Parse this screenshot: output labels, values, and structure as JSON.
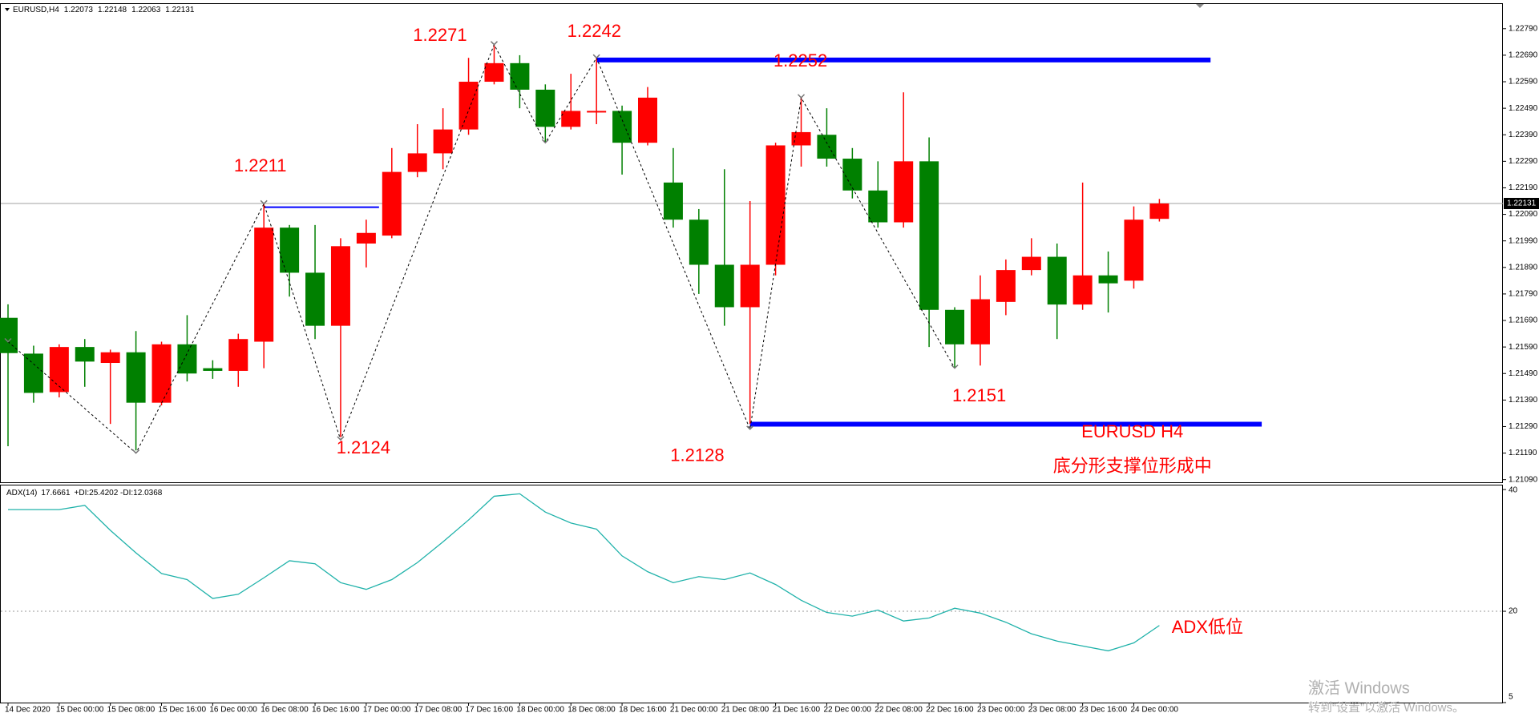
{
  "chart_data": [
    {
      "type": "candlestick",
      "title": "EURUSD,H4",
      "categories": [
        "14 Dec 2020",
        null,
        "15 Dec 00:00",
        null,
        "15 Dec 08:00",
        null,
        "15 Dec 16:00",
        null,
        "16 Dec 00:00",
        null,
        "16 Dec 08:00",
        null,
        "16 Dec 16:00",
        null,
        "17 Dec 00:00",
        null,
        "17 Dec 08:00",
        null,
        "17 Dec 16:00",
        null,
        "18 Dec 00:00",
        null,
        "18 Dec 08:00",
        null,
        "18 Dec 16:00",
        null,
        "21 Dec 00:00",
        null,
        "21 Dec 08:00",
        null,
        "21 Dec 16:00",
        null,
        "22 Dec 00:00",
        null,
        "22 Dec 08:00",
        null,
        "22 Dec 16:00",
        null,
        "23 Dec 00:00",
        null,
        "23 Dec 08:00",
        null,
        "23 Dec 16:00",
        null,
        "24 Dec 00:00",
        null
      ],
      "open": [
        1.217,
        1.21565,
        1.2142,
        1.2159,
        1.2153,
        1.2157,
        1.2138,
        1.216,
        1.2151,
        1.215,
        1.2161,
        1.2204,
        1.2187,
        1.2167,
        1.2198,
        1.2201,
        1.2225,
        1.2232,
        1.2241,
        1.2259,
        1.2266,
        1.2256,
        1.2242,
        1.2248,
        1.2248,
        1.2236,
        1.2221,
        1.2207,
        1.219,
        1.2174,
        1.219,
        1.2235,
        1.2239,
        1.223,
        1.2218,
        1.2206,
        1.2229,
        1.2173,
        1.216,
        1.2176,
        1.2188,
        1.2193,
        1.2175,
        1.2186,
        1.2184,
        1.22073
      ],
      "high": [
        1.21751,
        1.21595,
        1.216,
        1.2162,
        1.2158,
        1.2165,
        1.2161,
        1.2171,
        1.2154,
        1.2164,
        1.2213,
        1.2205,
        1.2205,
        1.22,
        1.2207,
        1.2234,
        1.2243,
        1.2249,
        1.2268,
        1.2273,
        1.2269,
        1.2258,
        1.2262,
        1.2268,
        1.225,
        1.2257,
        1.2234,
        1.2211,
        1.2226,
        1.2214,
        1.2236,
        1.2253,
        1.2249,
        1.2234,
        1.2229,
        1.2255,
        1.2238,
        1.2174,
        1.2186,
        1.2192,
        1.22,
        1.2198,
        1.2221,
        1.2195,
        1.2212,
        1.22148
      ],
      "low": [
        1.21216,
        1.2138,
        1.214,
        1.2144,
        1.213,
        1.212,
        1.2137,
        1.2146,
        1.2147,
        1.2144,
        1.2151,
        1.2178,
        1.2162,
        1.2125,
        1.2189,
        1.22,
        1.2223,
        1.2226,
        1.2239,
        1.2258,
        1.2249,
        1.2236,
        1.2241,
        1.2243,
        1.2224,
        1.2235,
        1.2204,
        1.2179,
        1.2167,
        1.213,
        1.2186,
        1.2227,
        1.2227,
        1.2215,
        1.2204,
        1.2204,
        1.2159,
        1.2151,
        1.2152,
        1.2171,
        1.2186,
        1.2162,
        1.2173,
        1.2172,
        1.2181,
        1.22063
      ],
      "close": [
        1.21567,
        1.21417,
        1.2159,
        1.21535,
        1.2157,
        1.2138,
        1.216,
        1.2149,
        1.215,
        1.2162,
        1.2204,
        1.2187,
        1.2167,
        1.2197,
        1.2202,
        1.2225,
        1.2232,
        1.2241,
        1.2259,
        1.2266,
        1.2256,
        1.2242,
        1.2248,
        1.2248,
        1.2236,
        1.2253,
        1.2207,
        1.219,
        1.2174,
        1.219,
        1.2235,
        1.224,
        1.223,
        1.2218,
        1.2206,
        1.2229,
        1.2173,
        1.216,
        1.2177,
        1.2188,
        1.2193,
        1.2175,
        1.2186,
        1.2183,
        1.2207,
        1.22131
      ],
      "up_color": "#ff0000",
      "down_color": "#008000",
      "ylim": [
        1.21077,
        1.22883
      ],
      "yticks": [
        {
          "value": 1.2279,
          "label": "1.22790"
        },
        {
          "value": 1.2269,
          "label": "1.22690"
        },
        {
          "value": 1.2259,
          "label": "1.22590"
        },
        {
          "value": 1.2249,
          "label": "1.22490"
        },
        {
          "value": 1.2239,
          "label": "1.22390"
        },
        {
          "value": 1.2229,
          "label": "1.22290"
        },
        {
          "value": 1.2219,
          "label": "1.22190"
        },
        {
          "value": 1.2209,
          "label": "1.22090"
        },
        {
          "value": 1.2199,
          "label": "1.21990"
        },
        {
          "value": 1.2189,
          "label": "1.21890"
        },
        {
          "value": 1.2179,
          "label": "1.21790"
        },
        {
          "value": 1.2169,
          "label": "1.21690"
        },
        {
          "value": 1.2159,
          "label": "1.21590"
        },
        {
          "value": 1.2149,
          "label": "1.21490"
        },
        {
          "value": 1.2139,
          "label": "1.21390"
        },
        {
          "value": 1.2129,
          "label": "1.21290"
        },
        {
          "value": 1.2119,
          "label": "1.21190"
        },
        {
          "value": 1.2109,
          "label": "1.21090"
        }
      ],
      "zigzag": {
        "x": [
          0,
          5,
          10,
          13,
          19,
          21,
          23,
          29,
          31,
          37
        ],
        "values": [
          1.2161,
          1.2119,
          1.2213,
          1.2124,
          1.2273,
          1.2236,
          1.2268,
          1.2128,
          1.2253,
          1.2151
        ]
      },
      "levels": [
        {
          "value": 1.22672,
          "from": 23,
          "to": 47,
          "color": "#0000ff",
          "width": 6
        },
        {
          "value": 1.21299,
          "from": 29,
          "to": 49,
          "color": "#0000ff",
          "width": 6
        },
        {
          "value": 1.22117,
          "from": 10,
          "to": 14.5,
          "color": "#0000ff",
          "width": 2
        }
      ],
      "annotations": [
        "1.2271",
        "1.2242",
        "1.2252",
        "1.2211",
        "1.2124",
        "1.2128",
        "1.2151",
        "EURUSD H4",
        "底分形支撑位形成中"
      ]
    },
    {
      "type": "line",
      "subtitle": "+DI:25.4202 -DI:12.0368",
      "series": [
        {
          "name": "ADX(14)",
          "color": "#20b2aa",
          "values": [
            36.7,
            36.7,
            36.7,
            37.4,
            33.3,
            29.6,
            26.2,
            25.2,
            22.1,
            22.8,
            25.5,
            28.3,
            27.8,
            24.7,
            23.6,
            25.2,
            28.0,
            31.4,
            35.0,
            38.9,
            39.3,
            36.3,
            34.5,
            33.5,
            29.1,
            26.5,
            24.7,
            25.7,
            25.2,
            26.3,
            24.4,
            21.8,
            19.8,
            19.2,
            20.2,
            18.4,
            18.9,
            20.5,
            19.7,
            18.2,
            16.3,
            15.1,
            14.3,
            13.5,
            14.8,
            17.6661
          ]
        }
      ],
      "ylim": [
        5,
        40.8
      ],
      "yticks": [
        40,
        20,
        5
      ],
      "dotted_level": 20,
      "annotations": [
        "ADX低位"
      ]
    }
  ],
  "watermark": [
    "激活 Windows",
    "转到“设置”以激活 Windows。"
  ]
}
